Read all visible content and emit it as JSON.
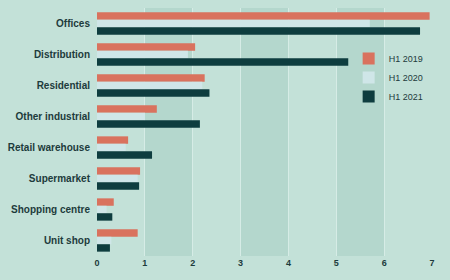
{
  "chart_data": {
    "type": "bar",
    "orientation": "horizontal",
    "categories": [
      "Offices",
      "Distribution",
      "Residential",
      "Other industrial",
      "Retail warehouse",
      "Supermarket",
      "Shopping centre",
      "Unit shop"
    ],
    "series": [
      {
        "name": "H1 2019",
        "color": "#d9725e",
        "values": [
          6.95,
          2.05,
          2.25,
          1.25,
          0.65,
          0.9,
          0.35,
          0.85
        ]
      },
      {
        "name": "H1 2020",
        "color": "#cfe6e8",
        "values": [
          5.7,
          1.9,
          2.2,
          1.0,
          0.6,
          0.85,
          0.2,
          0.3
        ]
      },
      {
        "name": "H1 2021",
        "color": "#0e3d3f",
        "values": [
          6.75,
          5.25,
          2.35,
          2.15,
          1.15,
          0.88,
          0.32,
          0.27
        ]
      }
    ],
    "xlim": [
      0,
      7
    ],
    "xticks": [
      0,
      1,
      2,
      3,
      4,
      5,
      6,
      7
    ],
    "grid": true,
    "legend": "right"
  }
}
